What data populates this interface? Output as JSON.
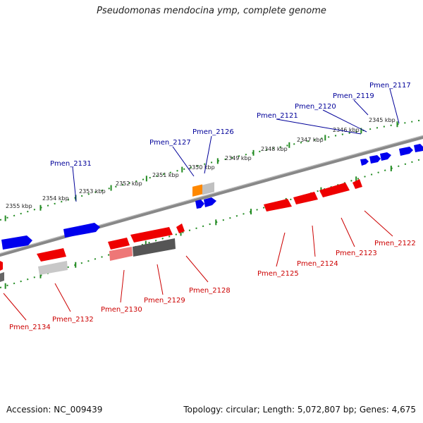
{
  "title": "Pseudomonas mendocina ymp, complete genome",
  "footer": {
    "accession": "Accession: NC_009439",
    "topology": "Topology: circular; Length: 5,072,807 bp; Genes: 4,675"
  },
  "colors": {
    "forward_gene": "#0000ee",
    "reverse_gene": "#ee0000",
    "label_forward": "#000099",
    "label_reverse": "#cc0000",
    "tick": "#228b22",
    "backbone": "#888888",
    "pseudo_gray": "#bbbbbb",
    "pseudo_dark": "#555555",
    "orange": "#ff8800"
  },
  "scale_labels": [
    "2355 kbp",
    "2354 kbp",
    "2353 kbp",
    "2352 kbp",
    "2351 kbp",
    "2350 kbp",
    "2349 kbp",
    "2348 kbp",
    "2347 kbp",
    "2346 kbp",
    "2345 kbp"
  ],
  "gene_labels_forward": [
    "Pmen_2131",
    "Pmen_2127",
    "Pmen_2126",
    "Pmen_2121",
    "Pmen_2120",
    "Pmen_2119",
    "Pmen_2117"
  ],
  "gene_labels_reverse": [
    "Pmen_2134",
    "Pmen_2132",
    "Pmen_2130",
    "Pmen_2129",
    "Pmen_2128",
    "Pmen_2125",
    "Pmen_2124",
    "Pmen_2123",
    "Pmen_2122"
  ]
}
